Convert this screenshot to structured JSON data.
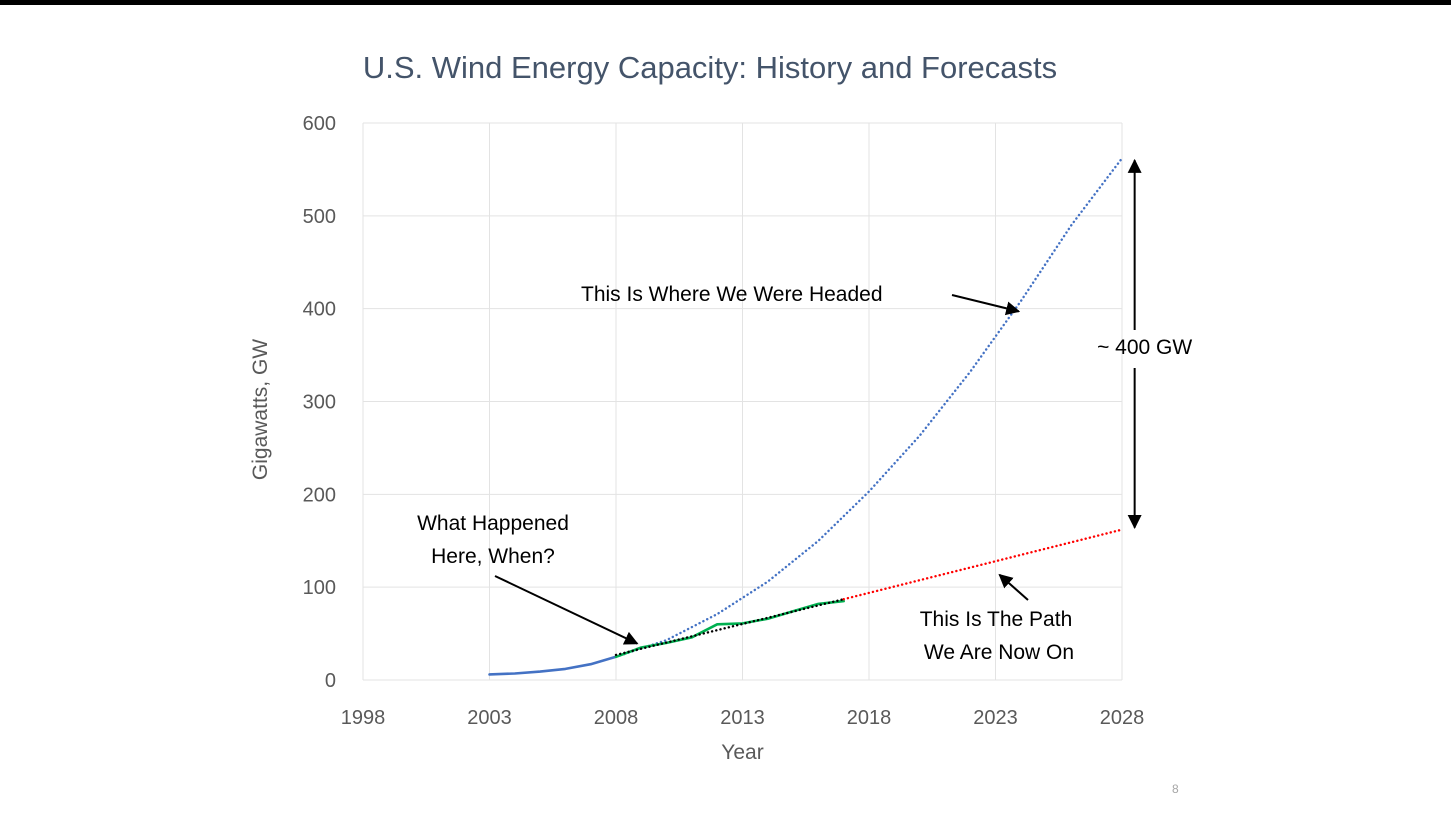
{
  "slide": {
    "number": "8"
  },
  "chart_data": {
    "type": "line",
    "title": "U.S. Wind Energy Capacity: History and Forecasts",
    "xlabel": "Year",
    "ylabel": "Gigawatts, GW",
    "xlim": [
      1998,
      2028
    ],
    "ylim": [
      0,
      600
    ],
    "xticks": [
      1998,
      2003,
      2008,
      2013,
      2018,
      2023,
      2028
    ],
    "yticks": [
      0,
      100,
      200,
      300,
      400,
      500,
      600
    ],
    "grid": true,
    "legend": "none",
    "series": [
      {
        "color": "#4472c4",
        "style": "solid",
        "x": [
          2003,
          2004,
          2005,
          2006,
          2007,
          2008
        ],
        "y": [
          6,
          7,
          9,
          12,
          17,
          25
        ]
      },
      {
        "color": "#4472c4",
        "style": "dotted",
        "x": [
          2008,
          2010,
          2012,
          2014,
          2016,
          2018,
          2020,
          2022,
          2024,
          2026,
          2028
        ],
        "y": [
          25,
          43,
          71,
          106,
          150,
          203,
          263,
          332,
          408,
          490,
          562
        ]
      },
      {
        "color": "#00b050",
        "style": "solid",
        "x": [
          2008,
          2009,
          2010,
          2011,
          2012,
          2013,
          2014,
          2015,
          2016,
          2017
        ],
        "y": [
          25,
          35,
          40,
          46,
          60,
          61,
          66,
          74,
          82,
          85
        ]
      },
      {
        "color": "#000000",
        "style": "dotted",
        "x": [
          2008,
          2017
        ],
        "y": [
          27,
          87
        ]
      },
      {
        "color": "#ff0000",
        "style": "dotted",
        "x": [
          2017,
          2028
        ],
        "y": [
          87,
          162
        ]
      }
    ],
    "annotations": [
      {
        "lines": [
          "This Is Where We Were Headed"
        ],
        "target": [
          2024,
          396
        ]
      },
      {
        "lines": [
          "What Happened",
          "Here, When?"
        ],
        "target": [
          2008.8,
          36
        ]
      },
      {
        "lines": [
          "This Is The Path",
          "We Are Now On"
        ],
        "target": [
          2023,
          122
        ]
      },
      {
        "lines": [
          "~ 400 GW"
        ],
        "span": [
          162,
          562
        ],
        "at_x": 2028.5
      }
    ]
  }
}
